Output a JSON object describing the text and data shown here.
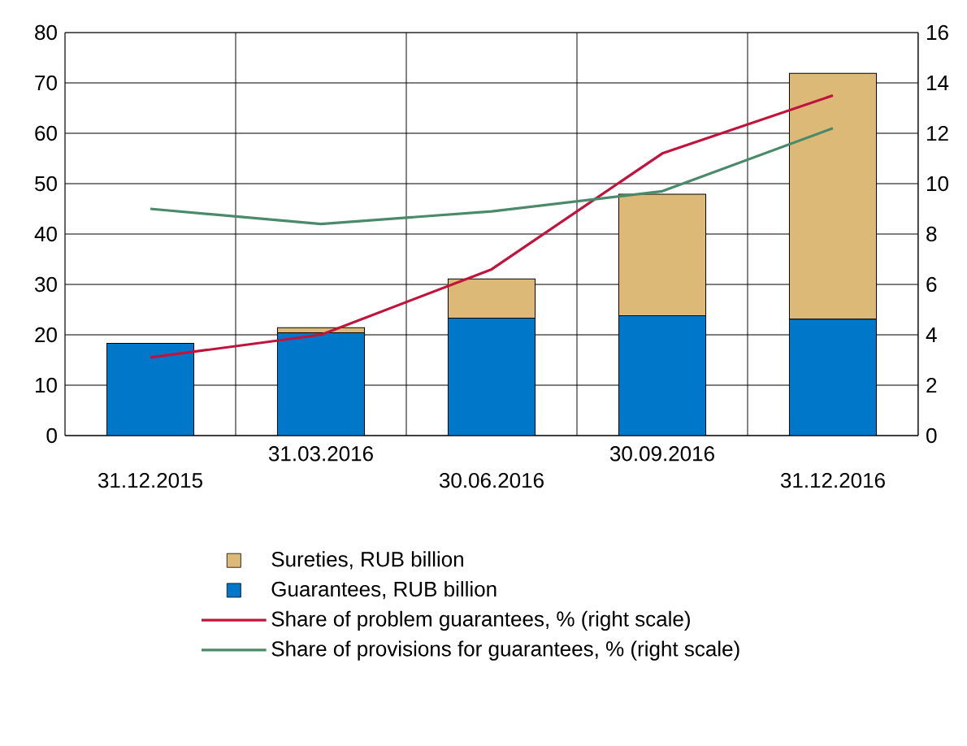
{
  "chart_data": {
    "type": "bar",
    "stacked": true,
    "grid": true,
    "legend": "bottom",
    "categories": [
      "31.12.2015",
      "31.03.2016",
      "30.06.2016",
      "30.09.2016",
      "31.12.2016"
    ],
    "series": [
      {
        "name": "Guarantees, RUB billion",
        "color": "#0077c8",
        "values": [
          18.3,
          20.4,
          23.3,
          23.8,
          23.1
        ]
      },
      {
        "name": "Sureties, RUB billion",
        "color": "#dcb977",
        "values": [
          0,
          1.0,
          7.8,
          24.1,
          48.8
        ]
      },
      {
        "name": "Share of problem guarantees, % (right scale)",
        "type": "line",
        "axis": "y2",
        "color": "#c0143c",
        "values": [
          3.1,
          4.0,
          6.6,
          11.2,
          13.5
        ]
      },
      {
        "name": "Share of provisions for guarantees, % (right scale)",
        "type": "line",
        "axis": "y2",
        "color": "#4a8a6a",
        "values": [
          9.0,
          8.4,
          8.9,
          9.7,
          12.2
        ]
      }
    ],
    "ylim": [
      0,
      80
    ],
    "yticks": [
      0,
      10,
      20,
      30,
      40,
      50,
      60,
      70,
      80
    ],
    "y2lim": [
      0,
      16
    ],
    "y2ticks": [
      0,
      2,
      4,
      6,
      8,
      10,
      12,
      14,
      16
    ]
  }
}
